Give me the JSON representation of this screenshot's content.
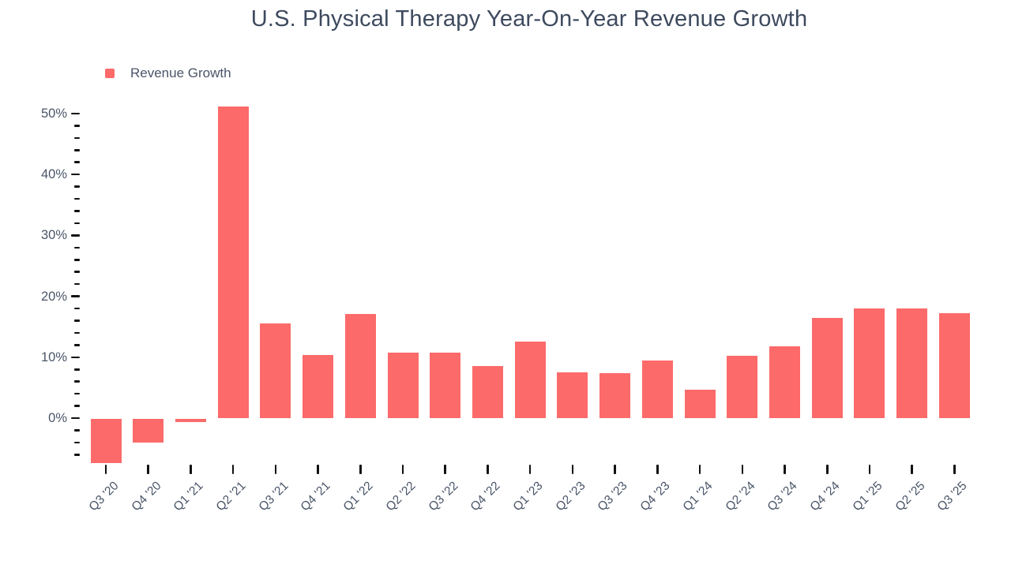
{
  "chart_data": {
    "type": "bar",
    "title": "U.S. Physical Therapy Year-On-Year Revenue Growth",
    "xlabel": "",
    "ylabel": "",
    "categories": [
      "Q3 '20",
      "Q4 '20",
      "Q1 '21",
      "Q2 '21",
      "Q3 '21",
      "Q4 '21",
      "Q1 '22",
      "Q2 '22",
      "Q3 '22",
      "Q4 '22",
      "Q1 '23",
      "Q2 '23",
      "Q3 '23",
      "Q4 '23",
      "Q1 '24",
      "Q2 '24",
      "Q3 '24",
      "Q4 '24",
      "Q1 '25",
      "Q2 '25",
      "Q3 '25"
    ],
    "series": [
      {
        "name": "Revenue Growth",
        "values": [
          -7.2,
          -3.9,
          -0.5,
          51.2,
          15.5,
          10.3,
          17.1,
          10.7,
          10.7,
          8.6,
          12.6,
          7.5,
          7.4,
          9.5,
          4.6,
          10.2,
          11.8,
          16.4,
          18.0,
          18.0,
          17.2
        ]
      }
    ],
    "unit": "%",
    "y_axis": {
      "tick_labels": [
        "0%",
        "10%",
        "20%",
        "30%",
        "40%",
        "50%"
      ],
      "major_step": 10,
      "minor_step": 2,
      "min": -8,
      "max": 52
    },
    "grid": false,
    "legend_position": "top-left",
    "legend": [
      {
        "label": "Revenue Growth",
        "color": "#fc6a6a"
      }
    ]
  },
  "colors": {
    "bar": "#fc6a6a",
    "title_text": "#3e4a5e",
    "axis_text": "#4a5568",
    "tick": "#111111",
    "background": "#ffffff"
  }
}
